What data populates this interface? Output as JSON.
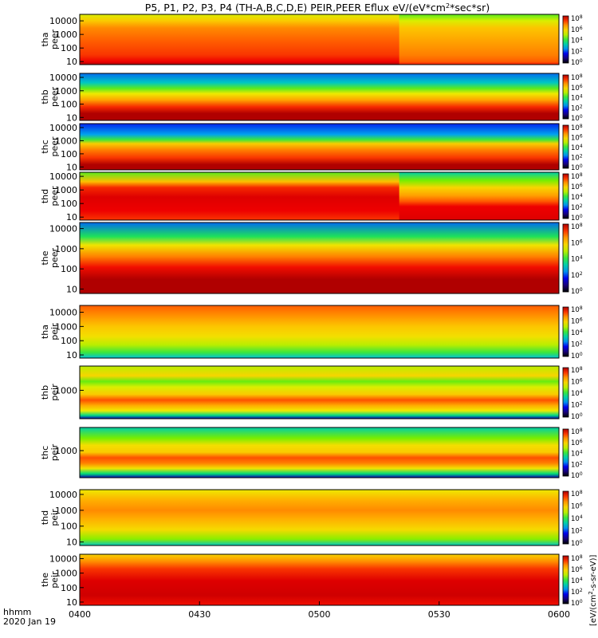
{
  "title": "P5, P1, P2, P3, P4 (TH-A,B,C,D,E) PEIR,PEER Eflux eV/(eV*cm^2*sec*sr)",
  "title_parts": [
    "P5, P1, P2, P3, P4 (TH-A,B,C,D,E) PEIR,PEER Eflux eV/(eV*cm",
    "2",
    "*sec*sr)"
  ],
  "time_axis": {
    "label_line1": "hhmm",
    "label_line2": "2020 Jan 19",
    "ticks": [
      "0400",
      "0430",
      "0500",
      "0530",
      "0600"
    ],
    "range_minutes": [
      0,
      120
    ],
    "tick_minutes": [
      0,
      30,
      60,
      90,
      120
    ]
  },
  "colorbar_label": "[eV/(cm^2-s-sr-eV)]",
  "colorbar_label_parts": [
    "[eV/(cm",
    "2",
    "-s-sr-eV)]"
  ],
  "chart_data": [
    {
      "type": "heatmap",
      "probe": "tha",
      "species": "peer",
      "ylabel": [
        "tha",
        "peer"
      ],
      "yticks": [
        "10",
        "100",
        "1000",
        "10000"
      ],
      "ylog": true,
      "ylim": [
        6,
        30000
      ],
      "colorbar_ticks": [
        "10^0",
        "10^2",
        "10^4",
        "10^6",
        "10^8"
      ],
      "clim_exp": [
        0,
        8
      ],
      "band_levels": [
        [
          6,
          8
        ],
        [
          10,
          7.6
        ],
        [
          30,
          7.2
        ],
        [
          300,
          6.9
        ],
        [
          3000,
          6.5
        ],
        [
          10000,
          5.8
        ],
        [
          30000,
          5.0
        ]
      ],
      "late_levels": [
        [
          6,
          7.4
        ],
        [
          10,
          6.9
        ],
        [
          30,
          6.6
        ],
        [
          300,
          6.3
        ],
        [
          3000,
          5.9
        ],
        [
          10000,
          5.0
        ],
        [
          30000,
          4.2
        ]
      ]
    },
    {
      "type": "heatmap",
      "probe": "thb",
      "species": "peer",
      "ylabel": [
        "thb",
        "peer"
      ],
      "yticks": [
        "10",
        "100",
        "1000",
        "10000"
      ],
      "ylog": true,
      "ylim": [
        6,
        20000
      ],
      "colorbar_ticks": [
        "10^0",
        "10^2",
        "10^4",
        "10^6",
        "10^8"
      ],
      "clim_exp": [
        0,
        8
      ],
      "band_levels": [
        [
          6,
          8
        ],
        [
          20,
          8
        ],
        [
          60,
          7.3
        ],
        [
          200,
          6.3
        ],
        [
          600,
          5.2
        ],
        [
          1500,
          4.2
        ],
        [
          4000,
          3.0
        ],
        [
          20000,
          2.2
        ]
      ]
    },
    {
      "type": "heatmap",
      "probe": "thc",
      "species": "peer",
      "ylabel": [
        "thc",
        "peer"
      ],
      "yticks": [
        "10",
        "100",
        "1000",
        "10000"
      ],
      "ylog": true,
      "ylim": [
        6,
        20000
      ],
      "colorbar_ticks": [
        "10^0",
        "10^2",
        "10^4",
        "10^6",
        "10^8"
      ],
      "clim_exp": [
        0,
        8
      ],
      "band_levels": [
        [
          6,
          8
        ],
        [
          15,
          8
        ],
        [
          50,
          7.2
        ],
        [
          200,
          6.6
        ],
        [
          600,
          5.7
        ],
        [
          1200,
          4.0
        ],
        [
          3000,
          2.5
        ],
        [
          20000,
          1.8
        ]
      ]
    },
    {
      "type": "heatmap",
      "probe": "thd",
      "species": "peer",
      "ylabel": [
        "thd",
        "peer"
      ],
      "yticks": [
        "10",
        "100",
        "1000",
        "10000"
      ],
      "ylog": true,
      "ylim": [
        6,
        20000
      ],
      "colorbar_ticks": [
        "10^0",
        "10^2",
        "10^4",
        "10^6",
        "10^8"
      ],
      "clim_exp": [
        0,
        8
      ],
      "band_levels": [
        [
          6,
          7.2
        ],
        [
          30,
          7.6
        ],
        [
          300,
          7.7
        ],
        [
          1500,
          7.3
        ],
        [
          4000,
          6.0
        ],
        [
          20000,
          4.2
        ]
      ],
      "late_levels": [
        [
          6,
          7.7
        ],
        [
          60,
          7.6
        ],
        [
          150,
          6.9
        ],
        [
          400,
          6.3
        ],
        [
          1500,
          5.6
        ],
        [
          5000,
          4.4
        ],
        [
          20000,
          3.2
        ]
      ]
    },
    {
      "type": "heatmap",
      "probe": "the",
      "species": "peer",
      "ylabel": [
        "the",
        "peer"
      ],
      "yticks": [
        "10",
        "100",
        "1000",
        "10000"
      ],
      "ylog": true,
      "ylim": [
        6,
        20000
      ],
      "colorbar_ticks": [
        "10^0",
        "10^2",
        "10^4",
        "10^6",
        "10^8"
      ],
      "clim_exp": [
        0,
        8
      ],
      "band_levels": [
        [
          6,
          8
        ],
        [
          30,
          8
        ],
        [
          120,
          7.5
        ],
        [
          400,
          6.6
        ],
        [
          1500,
          5.3
        ],
        [
          4000,
          3.8
        ],
        [
          20000,
          2.2
        ]
      ]
    },
    {
      "type": "heatmap",
      "probe": "tha",
      "species": "peir",
      "ylabel": [
        "tha",
        "peir"
      ],
      "yticks": [
        "10",
        "100",
        "1000",
        "10000"
      ],
      "ylog": true,
      "ylim": [
        6,
        30000
      ],
      "colorbar_ticks": [
        "10^0",
        "10^2",
        "10^4",
        "10^6",
        "10^8"
      ],
      "clim_exp": [
        0,
        8
      ],
      "band_levels": [
        [
          6,
          2.8
        ],
        [
          15,
          4.0
        ],
        [
          50,
          4.8
        ],
        [
          200,
          5.4
        ],
        [
          1000,
          5.9
        ],
        [
          5000,
          6.4
        ],
        [
          30000,
          6.9
        ]
      ]
    },
    {
      "type": "heatmap",
      "probe": "thb",
      "species": "peir",
      "ylabel": [
        "thb",
        "peir"
      ],
      "yticks": [
        "1000"
      ],
      "ylog": true,
      "ylim": [
        30,
        20000
      ],
      "colorbar_ticks": [
        "10^0",
        "10^2",
        "10^4",
        "10^6",
        "10^8"
      ],
      "clim_exp": [
        0,
        8
      ],
      "band_levels": [
        [
          30,
          1.2
        ],
        [
          45,
          3.5
        ],
        [
          80,
          5.2
        ],
        [
          150,
          6.2
        ],
        [
          300,
          7.0
        ],
        [
          600,
          5.8
        ],
        [
          1500,
          5.0
        ],
        [
          3000,
          4.3
        ],
        [
          6000,
          5.6
        ],
        [
          20000,
          4.8
        ]
      ]
    },
    {
      "type": "heatmap",
      "probe": "thc",
      "species": "peir",
      "ylabel": [
        "thc",
        "peir"
      ],
      "yticks": [
        "1000"
      ],
      "ylog": true,
      "ylim": [
        30,
        20000
      ],
      "colorbar_ticks": [
        "10^0",
        "10^2",
        "10^4",
        "10^6",
        "10^8"
      ],
      "clim_exp": [
        0,
        8
      ],
      "band_levels": [
        [
          30,
          1.2
        ],
        [
          50,
          3.6
        ],
        [
          100,
          5.3
        ],
        [
          200,
          6.6
        ],
        [
          400,
          7.0
        ],
        [
          800,
          5.8
        ],
        [
          2000,
          5.4
        ],
        [
          5000,
          4.4
        ],
        [
          20000,
          3.2
        ]
      ]
    },
    {
      "type": "heatmap",
      "probe": "thd",
      "species": "peir",
      "ylabel": [
        "thd",
        "peir"
      ],
      "yticks": [
        "10",
        "100",
        "1000",
        "10000"
      ],
      "ylog": true,
      "ylim": [
        6,
        20000
      ],
      "colorbar_ticks": [
        "10^0",
        "10^2",
        "10^4",
        "10^6",
        "10^8"
      ],
      "clim_exp": [
        0,
        8
      ],
      "band_levels": [
        [
          6,
          3.0
        ],
        [
          15,
          4.5
        ],
        [
          60,
          5.5
        ],
        [
          300,
          6.2
        ],
        [
          1000,
          6.5
        ],
        [
          4000,
          6.2
        ],
        [
          20000,
          5.2
        ]
      ]
    },
    {
      "type": "heatmap",
      "probe": "the",
      "species": "peir",
      "ylabel": [
        "the",
        "peir"
      ],
      "yticks": [
        "10",
        "100",
        "1000",
        "10000"
      ],
      "ylog": true,
      "ylim": [
        6,
        20000
      ],
      "colorbar_ticks": [
        "10^0",
        "10^2",
        "10^4",
        "10^6",
        "10^8"
      ],
      "clim_exp": [
        0,
        8
      ],
      "band_levels": [
        [
          6,
          7.5
        ],
        [
          30,
          7.8
        ],
        [
          300,
          7.7
        ],
        [
          2000,
          7.2
        ],
        [
          6000,
          6.5
        ],
        [
          20000,
          5.6
        ]
      ]
    }
  ]
}
